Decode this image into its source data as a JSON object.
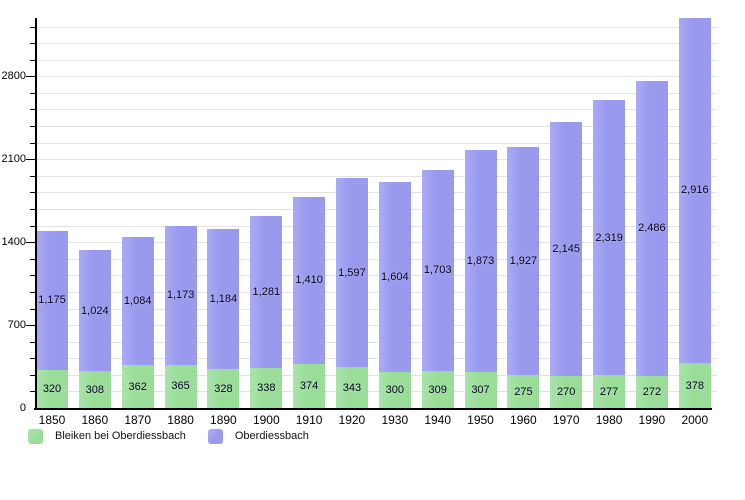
{
  "legend": {
    "items": [
      {
        "label": "Bleiken bei Oberdiessbach",
        "color": "#99dd99",
        "color_light": "#ace6ac"
      },
      {
        "label": "Oberdiessbach",
        "color": "#9999ee",
        "color_light": "#adadf5"
      }
    ]
  },
  "colors": {
    "background": "#ffffff",
    "gridline": "#e3e3e3",
    "axis": "#000000",
    "label_text": "#00001a"
  },
  "chart_data": {
    "type": "bar",
    "stacked": true,
    "title": "",
    "xlabel": "",
    "ylabel": "",
    "categories": [
      "1850",
      "1860",
      "1870",
      "1880",
      "1890",
      "1900",
      "1910",
      "1920",
      "1930",
      "1940",
      "1950",
      "1960",
      "1970",
      "1980",
      "1990",
      "2000"
    ],
    "series": [
      {
        "name": "Bleiken bei Oberdiessbach",
        "color": "#99dd99",
        "color_light": "#a9e4a9",
        "values": [
          320,
          308,
          362,
          365,
          328,
          338,
          374,
          343,
          300,
          309,
          307,
          275,
          270,
          277,
          272,
          378
        ],
        "labels": [
          "320",
          "308",
          "362",
          "365",
          "328",
          "338",
          "374",
          "343",
          "300",
          "309",
          "307",
          "275",
          "270",
          "277",
          "272",
          "378"
        ]
      },
      {
        "name": "Oberdiessbach",
        "color": "#9999ee",
        "color_light": "#aaaaf4",
        "values": [
          1175,
          1024,
          1084,
          1173,
          1184,
          1281,
          1410,
          1597,
          1604,
          1703,
          1873,
          1927,
          2145,
          2319,
          2486,
          2916
        ],
        "labels": [
          "1,175",
          "1,024",
          "1,084",
          "1,173",
          "1,184",
          "1,281",
          "1,410",
          "1,597",
          "1,604",
          "1,703",
          "1,873",
          "1,927",
          "2,145",
          "2,319",
          "2,486",
          "2,916"
        ]
      }
    ],
    "ylim": [
      0,
      3300
    ],
    "yticks_major": [
      0,
      700,
      1400,
      2100,
      2800
    ],
    "ytick_major_labels": [
      "0",
      "700",
      "1400",
      "2100",
      "2800"
    ],
    "ytick_minor_step": 140,
    "grid": true,
    "legend_position": "bottom-left"
  }
}
